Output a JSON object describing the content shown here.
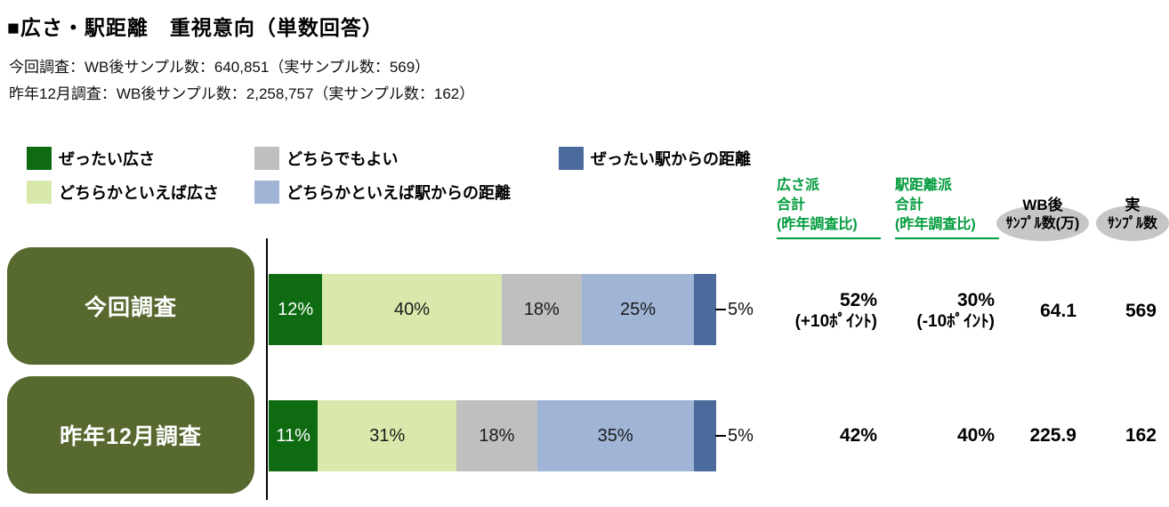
{
  "title": "■広さ・駅距離　重視意向（単数回答）",
  "notes": [
    "今回調査：WB後サンプル数：640,851（実サンプル数：569）",
    "昨年12月調査：WB後サンプル数：2,258,757（実サンプル数：162）"
  ],
  "colors": {
    "label_box": "#57692f",
    "header_green": "#009b3c",
    "ellipse_gray": "#c6c6c6",
    "axis_black": "#000000"
  },
  "columns": {
    "hirosa": {
      "line1": "広さ派",
      "line2": "合計",
      "line3": "(昨年調査比)"
    },
    "ekikyori": {
      "line1": "駅距離派",
      "line2": "合計",
      "line3": "(昨年調査比)"
    },
    "wb": {
      "line1": "WB後",
      "line2": "ｻﾝﾌﾟﾙ数(万)"
    },
    "jitsu": {
      "line1": "実",
      "line2": "ｻﾝﾌﾟﾙ数"
    }
  },
  "rows": [
    {
      "label": "今回調査",
      "hirosa_total": "52%",
      "hirosa_diff": "(+10ﾎﾟｲﾝﾄ)",
      "ekikyori_total": "30%",
      "ekikyori_diff": "(-10ﾎﾟｲﾝﾄ)",
      "wb_sample": "64.1",
      "real_sample": "569"
    },
    {
      "label": "昨年12月調査",
      "hirosa_total": "42%",
      "ekikyori_total": "40%",
      "wb_sample": "225.9",
      "real_sample": "162"
    }
  ],
  "chart_data": {
    "type": "bar",
    "orientation": "horizontal",
    "stacked": true,
    "unit": "%",
    "xlim": [
      0,
      100
    ],
    "title": "広さ・駅距離　重視意向（単数回答）",
    "categories": [
      "今回調査",
      "昨年12月調査"
    ],
    "series": [
      {
        "name": "ぜったい広さ",
        "color": "#0f6b12",
        "label_color": "#ffffff",
        "values": [
          12,
          11
        ]
      },
      {
        "name": "どちらかといえば広さ",
        "color": "#d9e9ab",
        "values": [
          40,
          31
        ]
      },
      {
        "name": "どちらでもよい",
        "color": "#bfbfbf",
        "values": [
          18,
          18
        ]
      },
      {
        "name": "どちらかといえば駅からの距離",
        "color": "#a0b4d6",
        "values": [
          25,
          35
        ]
      },
      {
        "name": "ぜったい駅からの距離",
        "color": "#4a6b9c",
        "values": [
          5,
          5
        ],
        "label_outside": true
      }
    ],
    "totals": {
      "hirosa_goukei": [
        "52% (+10ﾎﾟｲﾝﾄ)",
        "42%"
      ],
      "ekikyori_goukei": [
        "30% (-10ﾎﾟｲﾝﾄ)",
        "40%"
      ],
      "wb_sample_man": [
        "64.1",
        "225.9"
      ],
      "real_sample": [
        "569",
        "162"
      ]
    }
  }
}
